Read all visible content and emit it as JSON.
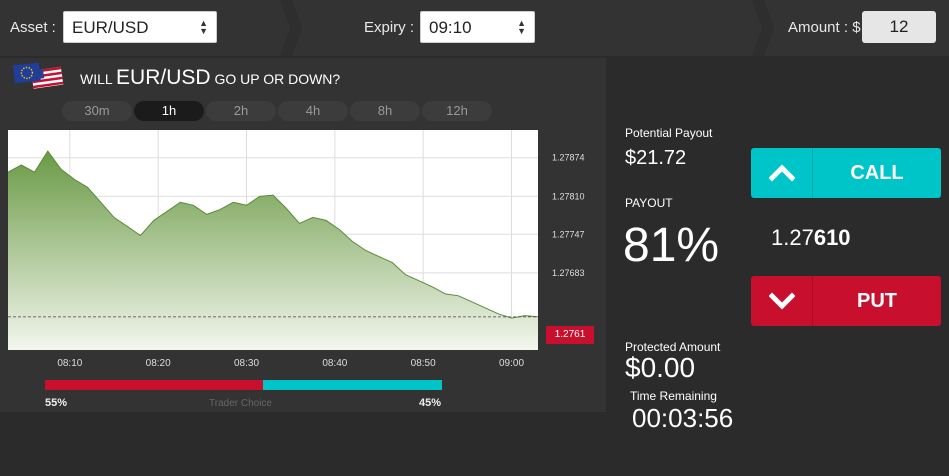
{
  "header": {
    "asset_label": "Asset :",
    "asset_value": "EUR/USD",
    "expiry_label": "Expiry :",
    "expiry_value": "09:10",
    "amount_label": "Amount : $",
    "amount_value": "12"
  },
  "question": {
    "prefix": "WILL",
    "pair": "EUR/USD",
    "suffix": "GO UP OR DOWN?"
  },
  "timeframes": [
    {
      "label": "30m",
      "active": false
    },
    {
      "label": "1h",
      "active": true
    },
    {
      "label": "2h",
      "active": false
    },
    {
      "label": "4h",
      "active": false
    },
    {
      "label": "8h",
      "active": false
    },
    {
      "label": "12h",
      "active": false
    }
  ],
  "chart_data": {
    "type": "area",
    "x_ticks": [
      "08:10",
      "08:20",
      "08:30",
      "08:40",
      "08:50",
      "09:00"
    ],
    "y_ticks": [
      "1.27874",
      "1.27810",
      "1.27747",
      "1.27683"
    ],
    "current_price": "1.2761",
    "series_color": "#6a9a45",
    "points": [
      [
        0,
        1.2785
      ],
      [
        1.5,
        1.27862
      ],
      [
        3,
        1.2785
      ],
      [
        4.5,
        1.27885
      ],
      [
        6,
        1.27855
      ],
      [
        7.5,
        1.27838
      ],
      [
        9,
        1.27825
      ],
      [
        10.5,
        1.278
      ],
      [
        12,
        1.27775
      ],
      [
        13.5,
        1.2776
      ],
      [
        15,
        1.27745
      ],
      [
        16.5,
        1.2777
      ],
      [
        18,
        1.27785
      ],
      [
        19.5,
        1.278
      ],
      [
        21,
        1.27795
      ],
      [
        22.5,
        1.2778
      ],
      [
        24,
        1.27788
      ],
      [
        25.5,
        1.278
      ],
      [
        27,
        1.27795
      ],
      [
        28.5,
        1.2781
      ],
      [
        30,
        1.27812
      ],
      [
        31.5,
        1.2779
      ],
      [
        33,
        1.27765
      ],
      [
        34.5,
        1.27775
      ],
      [
        36,
        1.2777
      ],
      [
        37.5,
        1.27755
      ],
      [
        39,
        1.27735
      ],
      [
        40.5,
        1.2772
      ],
      [
        42,
        1.2771
      ],
      [
        43.5,
        1.277
      ],
      [
        45,
        1.2768
      ],
      [
        46.5,
        1.2767
      ],
      [
        48,
        1.2766
      ],
      [
        49.5,
        1.27648
      ],
      [
        51,
        1.27645
      ],
      [
        52.5,
        1.27635
      ],
      [
        54,
        1.27625
      ],
      [
        55.5,
        1.27615
      ],
      [
        57,
        1.27608
      ],
      [
        58.5,
        1.27612
      ],
      [
        60,
        1.2761
      ]
    ]
  },
  "sentiment": {
    "put_pct": "55%",
    "call_pct": "45%",
    "put_value": 55,
    "label": "Trader Choice"
  },
  "info": {
    "potential_payout_label": "Potential Payout",
    "potential_payout_value": "$21.72",
    "payout_label": "PAYOUT",
    "payout_value": "81%",
    "protected_label": "Protected Amount",
    "protected_value": "$0.00",
    "time_label": "Time Remaining",
    "time_value": "00:03:56"
  },
  "trade": {
    "call_label": "CALL",
    "put_label": "PUT",
    "rate_main": "1.27",
    "rate_bold": "610"
  },
  "colors": {
    "call": "#00c5c8",
    "put": "#c8102e"
  }
}
